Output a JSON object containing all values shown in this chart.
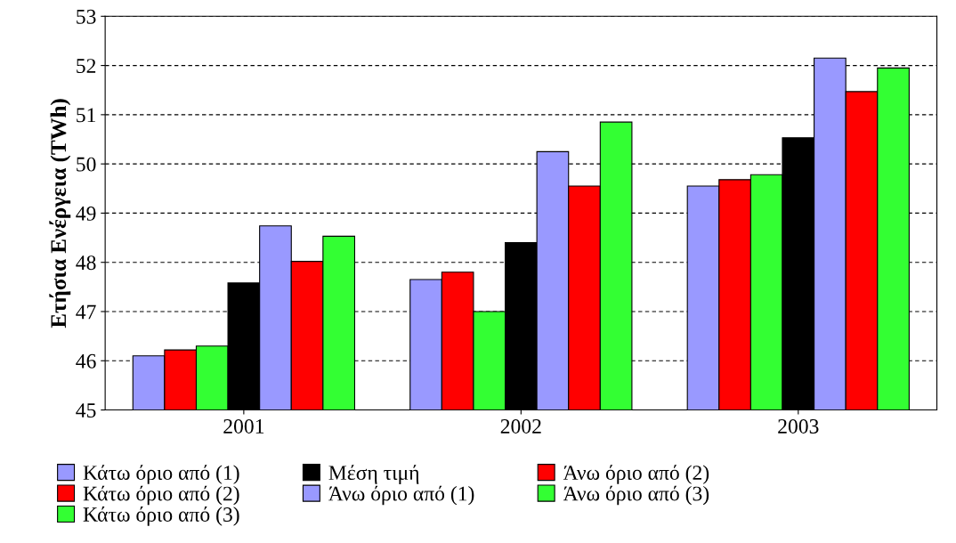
{
  "chart_data": {
    "type": "bar",
    "ylabel": "Ετήσια Ενέργεια (TWh)",
    "categories": [
      "2001",
      "2002",
      "2003"
    ],
    "series": [
      {
        "name": "Κάτω όριο από (1)",
        "color": "#9999ff",
        "values": [
          46.1,
          47.65,
          49.55
        ]
      },
      {
        "name": "Κάτω όριο από (2)",
        "color": "#ff0000",
        "values": [
          46.22,
          47.8,
          49.68
        ]
      },
      {
        "name": "Κάτω όριο από (3)",
        "color": "#33ff33",
        "values": [
          46.3,
          47.0,
          49.78
        ]
      },
      {
        "name": "Μέση τιμή",
        "color": "#000000",
        "values": [
          47.58,
          48.4,
          50.53
        ]
      },
      {
        "name": "Άνω όριο από (1)",
        "color": "#9999ff",
        "values": [
          48.74,
          50.25,
          52.15
        ]
      },
      {
        "name": "Άνω όριο από (2)",
        "color": "#ff0000",
        "values": [
          48.02,
          49.55,
          51.47
        ]
      },
      {
        "name": "Άνω όριο από (3)",
        "color": "#33ff33",
        "values": [
          48.53,
          50.85,
          51.95
        ]
      }
    ],
    "ylim": [
      45,
      53
    ],
    "yticks": [
      45,
      46,
      47,
      48,
      49,
      50,
      51,
      52,
      53
    ],
    "grid": "y",
    "legend": "bottom"
  }
}
